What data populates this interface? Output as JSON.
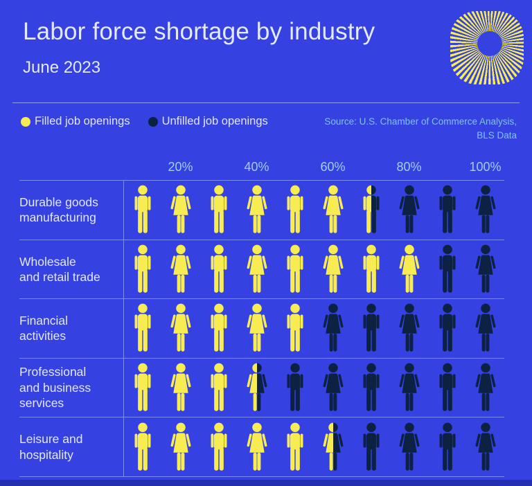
{
  "header": {
    "title": "Labor force shortage by industry",
    "subtitle": "June 2023"
  },
  "logo": {
    "name": "sunburst-logo"
  },
  "legend": {
    "items": [
      {
        "label": "Filled job openings",
        "color": "#f7ec52"
      },
      {
        "label": "Unfilled job openings",
        "color": "#0d2143"
      }
    ]
  },
  "source": {
    "line1": "Source: U.S. Chamber of Commerce Analysis,",
    "line2": "BLS Data"
  },
  "colors": {
    "background": "#3641e2",
    "yellow": "#f7ec52",
    "navy": "#0d2143",
    "title_text": "#e4eafa",
    "label_text": "#e2e9f8",
    "axis_text": "#a3cdf2",
    "source_text": "#7fc4ec",
    "grid_line": "rgba(175,205,255,0.55)"
  },
  "chart_data": {
    "type": "pictogram",
    "title": "Labor force shortage by industry",
    "subtitle": "June 2023",
    "icons_per_row": 10,
    "percent_per_icon": 10,
    "icon_genders_pattern": [
      "male",
      "female"
    ],
    "x_tick_labels": [
      "20%",
      "40%",
      "60%",
      "80%",
      "100%"
    ],
    "categories": [
      "Durable goods\nmanufacturing",
      "Wholesale\nand retail trade",
      "Financial\nactivities",
      "Professional\nand business\nservices",
      "Leisure and\nhospitality"
    ],
    "series": [
      {
        "name": "Filled job openings",
        "color": "#f7ec52",
        "values": [
          65,
          80,
          50,
          35,
          55
        ]
      },
      {
        "name": "Unfilled job openings",
        "color": "#0d2143",
        "values": [
          35,
          20,
          50,
          65,
          45
        ]
      }
    ],
    "legend_position": "top-left",
    "grid": "row-separators"
  }
}
